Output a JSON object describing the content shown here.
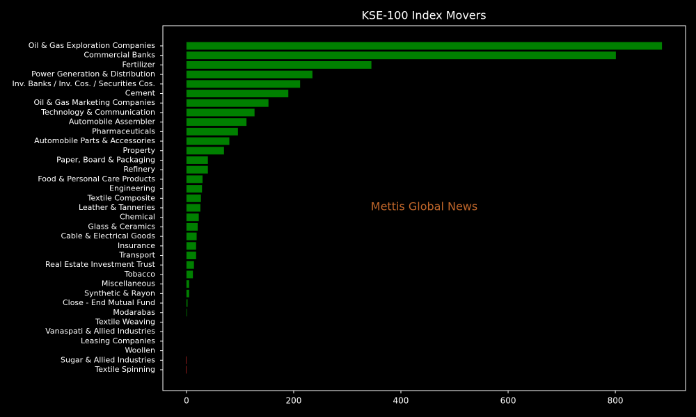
{
  "chart_data": {
    "type": "barh",
    "title": "KSE-100 Index Movers",
    "annotation": "Mettis Global News",
    "annotation_color": "#c0662a",
    "categories": [
      "Oil & Gas Exploration Companies",
      "Commercial Banks",
      "Fertilizer",
      "Power Generation & Distribution",
      "Inv. Banks / Inv. Cos. / Securities Cos.",
      "Cement",
      "Oil & Gas Marketing Companies",
      "Technology & Communication",
      "Automobile Assembler",
      "Pharmaceuticals",
      "Automobile Parts & Accessories",
      "Property",
      "Paper, Board & Packaging",
      "Refinery",
      "Food & Personal Care Products",
      "Engineering",
      "Textile Composite",
      "Leather & Tanneries",
      "Chemical",
      "Glass & Ceramics",
      "Cable & Electrical Goods",
      "Insurance",
      "Transport",
      "Real Estate Investment Trust",
      "Tobacco",
      "Miscellaneous",
      "Synthetic & Rayon",
      "Close - End Mutual Fund",
      "Modarabas",
      "Textile Weaving",
      "Vanaspati & Allied Industries",
      "Leasing Companies",
      "Woollen",
      "Sugar & Allied Industries",
      "Textile Spinning"
    ],
    "values": [
      887,
      801,
      345,
      235,
      212,
      190,
      153,
      127,
      112,
      96,
      80,
      70,
      40,
      40,
      30,
      29,
      27,
      26,
      23,
      21,
      19,
      18,
      18,
      14,
      12,
      5,
      5,
      2,
      1,
      0,
      0,
      0,
      0,
      -1,
      -1
    ],
    "color": "#008000",
    "negative_color": "#b22222",
    "xlim": [
      -44,
      931
    ],
    "xticks": [
      0,
      200,
      400,
      600,
      800
    ]
  }
}
